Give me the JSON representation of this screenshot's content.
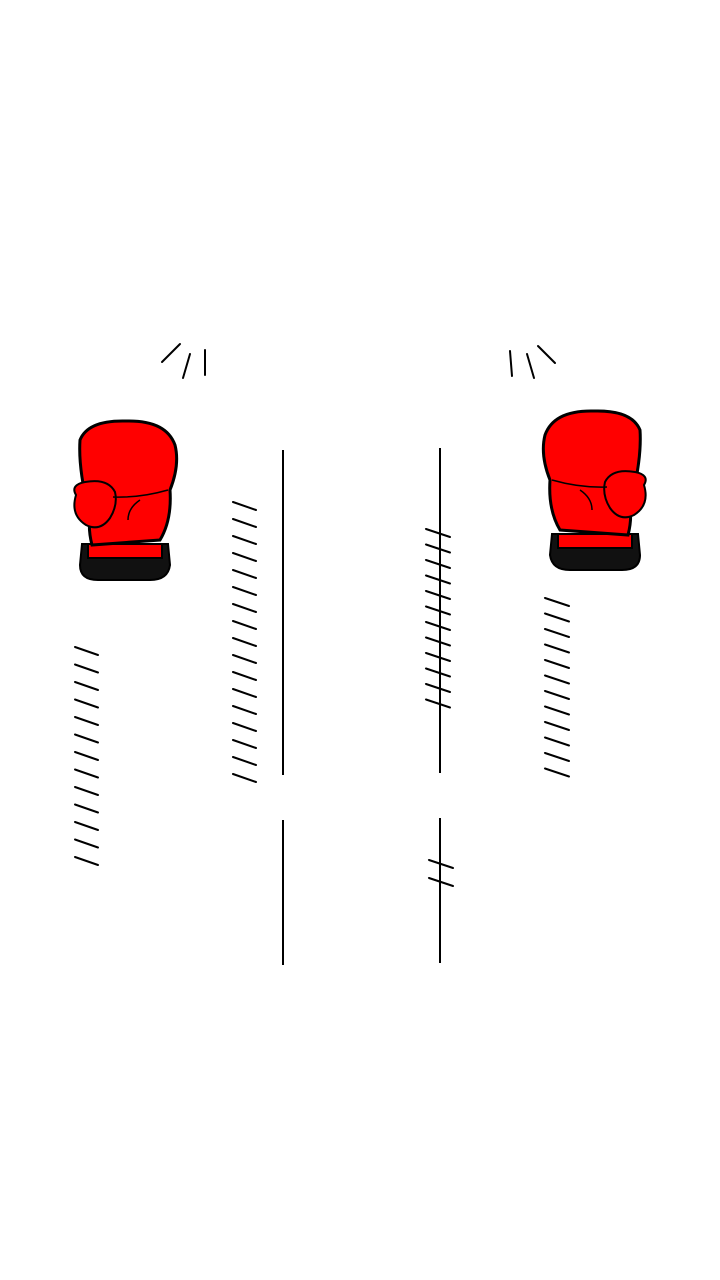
{
  "game": {
    "scene": "boxing-glove-dodge",
    "left_glove": {
      "icon": "boxing-glove-icon",
      "color": "#ff0000",
      "cuff_color": "#111111"
    },
    "right_glove": {
      "icon": "boxing-glove-icon",
      "color": "#ff0000",
      "cuff_color": "#111111"
    },
    "lane_line_color": "#000000",
    "background": "#ffffff"
  }
}
